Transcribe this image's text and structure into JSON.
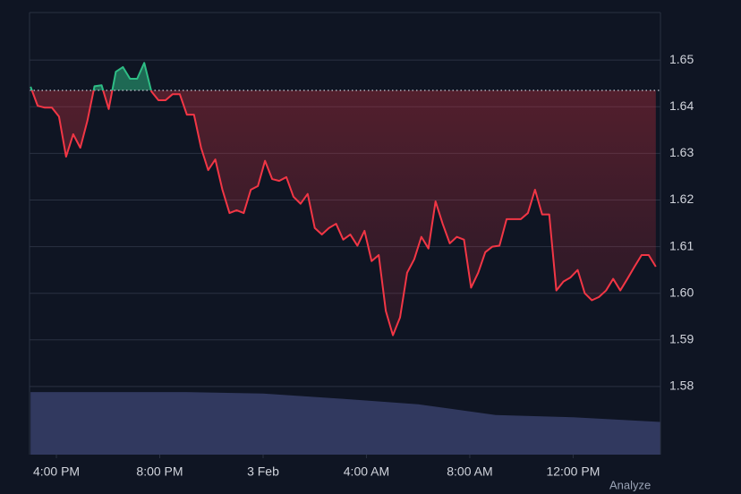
{
  "chart_data": {
    "type": "line",
    "x": [
      15,
      15.275,
      15.55,
      15.825,
      16.1,
      16.375,
      16.65,
      16.925,
      17.2,
      17.475,
      17.75,
      18.025,
      18.3,
      18.575,
      18.85,
      19.125,
      19.4,
      19.675,
      19.95,
      20.225,
      20.5,
      20.775,
      21.05,
      21.325,
      21.6,
      21.875,
      22.15,
      22.425,
      22.7,
      22.975,
      23.25,
      23.525,
      23.8,
      24.075,
      24.35,
      24.625,
      24.9,
      25.175,
      25.45,
      25.725,
      26,
      26.275,
      26.55,
      26.825,
      27.1,
      27.375,
      27.65,
      27.925,
      28.2,
      28.475,
      28.75,
      29.025,
      29.3,
      29.575,
      29.85,
      30.125,
      30.4,
      30.675,
      30.95,
      31.225,
      31.5,
      31.775,
      32.05,
      32.325,
      32.6,
      32.875,
      33.15,
      33.425,
      33.7,
      33.975,
      34.25,
      34.525,
      34.8,
      35.075,
      35.35,
      35.625,
      35.9,
      36.175,
      36.45,
      36.725,
      37,
      37.275,
      37.55,
      37.825,
      38.1,
      38.375,
      38.65,
      38.925,
      39.2
    ],
    "values": [
      1.6443,
      1.6402,
      1.6398,
      1.6398,
      1.6379,
      1.6293,
      1.6341,
      1.6312,
      1.637,
      1.6444,
      1.6446,
      1.6395,
      1.6475,
      1.6485,
      1.646,
      1.646,
      1.6494,
      1.6433,
      1.6414,
      1.6414,
      1.6427,
      1.6427,
      1.6383,
      1.6383,
      1.6312,
      1.6264,
      1.6287,
      1.6222,
      1.6172,
      1.6178,
      1.6172,
      1.6222,
      1.623,
      1.6284,
      1.6245,
      1.6241,
      1.6249,
      1.6207,
      1.6192,
      1.6213,
      1.614,
      1.6126,
      1.614,
      1.6149,
      1.6115,
      1.6126,
      1.6102,
      1.6134,
      1.6069,
      1.6082,
      1.5962,
      1.591,
      1.5948,
      1.6044,
      1.6073,
      1.6121,
      1.6096,
      1.6197,
      1.6149,
      1.6107,
      1.6121,
      1.6115,
      1.6012,
      1.6044,
      1.6088,
      1.61,
      1.6102,
      1.6159,
      1.6159,
      1.6159,
      1.6172,
      1.6222,
      1.6169,
      1.6169,
      1.6006,
      1.6025,
      1.6034,
      1.605,
      1.6,
      1.5985,
      1.5992,
      1.6006,
      1.6031,
      1.6006,
      1.6031,
      1.6057,
      1.6082,
      1.6082,
      1.6057
    ],
    "baseline": 1.6435,
    "colors": {
      "up": "#2ebd85",
      "down": "#f23645"
    },
    "volume": {
      "color": "#37406a",
      "x": [
        15,
        18,
        21,
        24,
        27,
        30,
        33,
        36,
        39.38
      ],
      "values": [
        1.5788,
        1.5788,
        1.5788,
        1.5785,
        1.5774,
        1.5762,
        1.5739,
        1.5734,
        1.5724
      ]
    },
    "xlim": [
      14.96,
      39.38
    ],
    "xticks": [
      {
        "value": 16,
        "label": "4:00 PM"
      },
      {
        "value": 20,
        "label": "8:00 PM"
      },
      {
        "value": 24,
        "label": "3 Feb"
      },
      {
        "value": 28,
        "label": "4:00 AM"
      },
      {
        "value": 32,
        "label": "8:00 AM"
      },
      {
        "value": 36,
        "label": "12:00 PM"
      }
    ],
    "ylim": [
      1.5654,
      1.6602
    ],
    "yticks": [
      1.58,
      1.59,
      {
        "value": 1.6,
        "label": "1.60"
      },
      1.61,
      1.62,
      1.63,
      1.64,
      1.65
    ],
    "grid": true,
    "footer_button": "Analyze"
  }
}
